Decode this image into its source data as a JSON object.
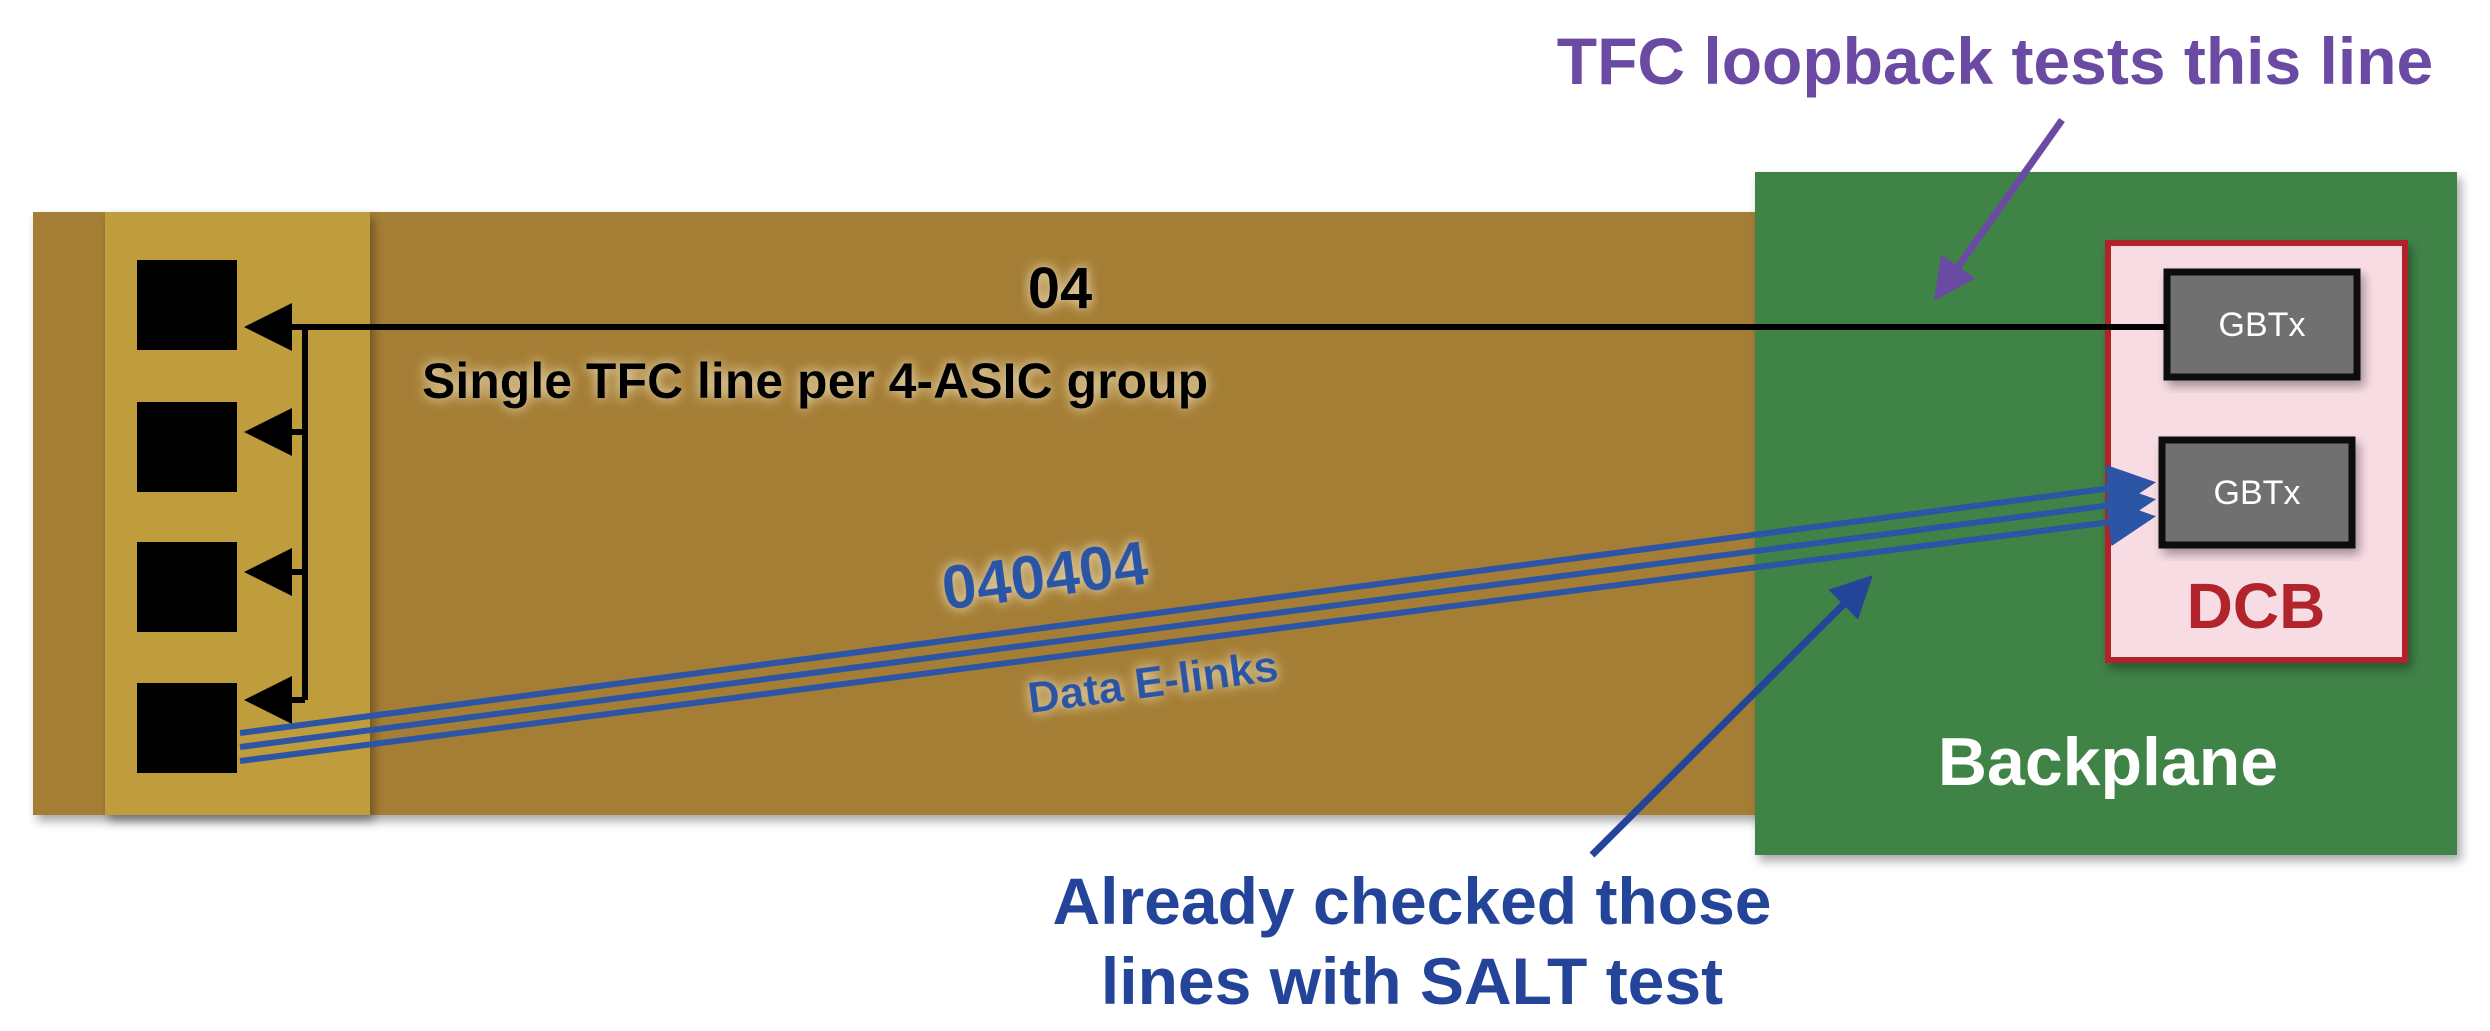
{
  "annotations": {
    "tfc_loopback": "TFC loopback tests this line",
    "already_checked_line1": "Already checked those",
    "already_checked_line2": "lines with SALT test"
  },
  "tfc_line": {
    "pattern": "04",
    "description": "Single TFC line per 4-ASIC group"
  },
  "data_links": {
    "pattern": "040404",
    "label": "Data E-links"
  },
  "backplane": {
    "label": "Backplane",
    "dcb": {
      "label": "DCB",
      "chips": [
        "GBTx",
        "GBTx"
      ]
    }
  },
  "colors": {
    "flex_cable": "#a57e35",
    "asic_board": "#bf9d3c",
    "backplane": "#3f8347",
    "dcb_fill": "#f8dce3",
    "dcb_border": "#b2242c",
    "gbtx_fill": "#707070",
    "data_blue": "#2c55a5",
    "annotation_blue": "#24449a",
    "annotation_purple": "#6a4aa2",
    "tfc_black": "#000000"
  }
}
